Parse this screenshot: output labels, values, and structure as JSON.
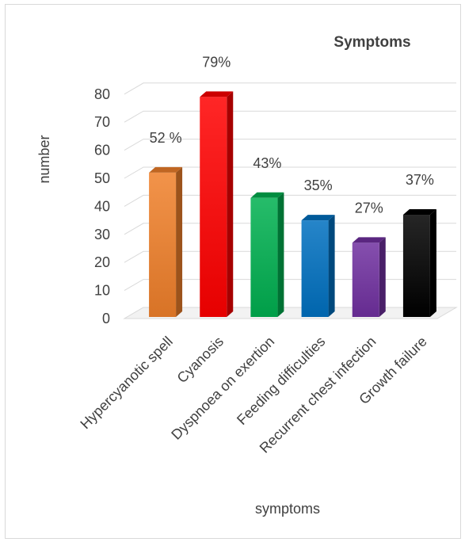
{
  "chart_data": {
    "type": "bar",
    "title": "Symptoms",
    "xlabel": "symptoms",
    "ylabel": "number",
    "categories": [
      "Hypercyanotic spell",
      "Cyanosis",
      "Dyspnoea on exertion",
      "Feeding difficulties",
      "Recurrent chest infection",
      "Growth failure"
    ],
    "values": [
      52,
      79,
      43,
      35,
      27,
      37
    ],
    "data_labels": [
      "52 %",
      "79%",
      "43%",
      "35%",
      "27%",
      "37%"
    ],
    "colors": [
      "#f0802a",
      "#ff0000",
      "#00b050",
      "#0070c0",
      "#7030a0",
      "#000000"
    ],
    "ylim": [
      0,
      80
    ],
    "yticks": [
      0,
      10,
      20,
      30,
      40,
      50,
      60,
      70,
      80
    ],
    "grid": true,
    "legend": "none",
    "style": "3d-column"
  }
}
